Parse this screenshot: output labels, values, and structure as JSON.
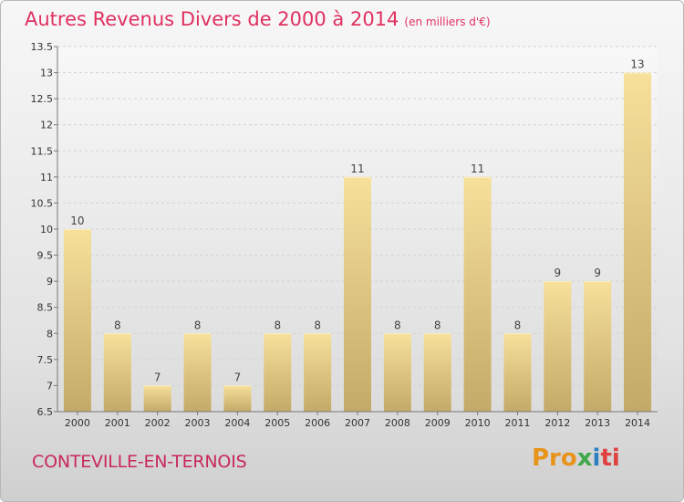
{
  "header": {
    "title": "Autres Revenus Divers de 2000 à 2014",
    "unit": "(en milliers d'€)"
  },
  "footer": {
    "place": "CONTEVILLE-EN-TERNOIS",
    "logo": [
      "Pro",
      "x",
      "i",
      "ti"
    ]
  },
  "colors": {
    "title": "#e03060",
    "bar_top": "#f6e09a",
    "bar_bottom": "#c4aa68"
  },
  "chart_data": {
    "type": "bar",
    "categories": [
      "2000",
      "2001",
      "2002",
      "2003",
      "2004",
      "2005",
      "2006",
      "2007",
      "2008",
      "2009",
      "2010",
      "2011",
      "2012",
      "2013",
      "2014"
    ],
    "values": [
      10,
      8,
      7,
      8,
      7,
      8,
      8,
      11,
      8,
      8,
      11,
      8,
      9,
      9,
      13
    ],
    "ylim": [
      6.5,
      13.5
    ],
    "yticks": [
      "6.5",
      "7",
      "7.5",
      "8",
      "8.5",
      "9",
      "9.5",
      "10",
      "10.5",
      "11",
      "11.5",
      "12",
      "12.5",
      "13",
      "13.5"
    ],
    "grid": true
  }
}
